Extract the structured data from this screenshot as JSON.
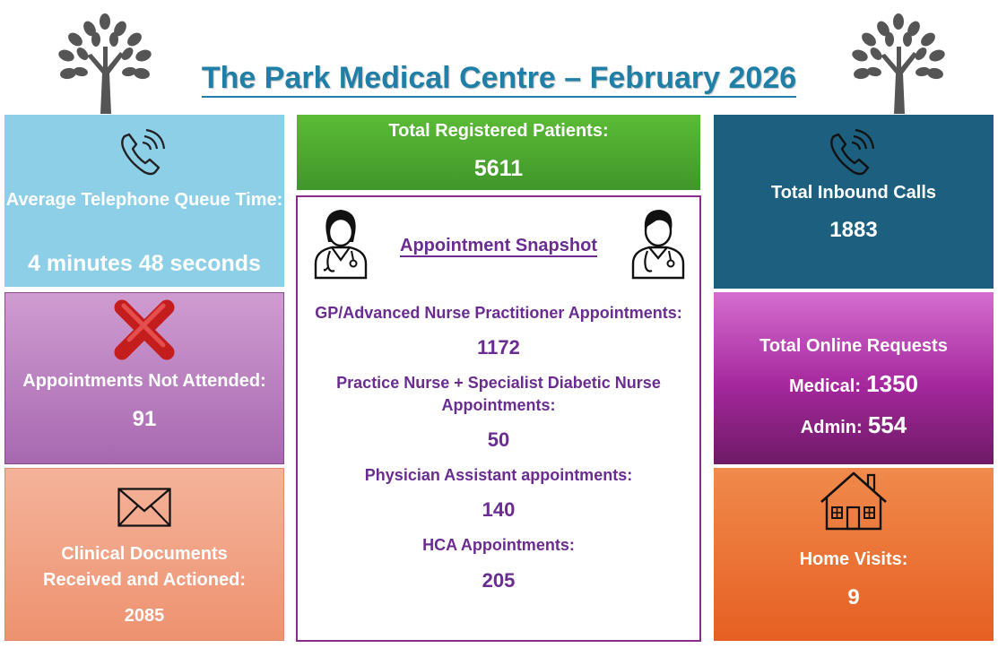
{
  "header": {
    "title": "The Park Medical Centre – February 2026",
    "left_icon": "tree-icon",
    "right_icon": "tree-icon"
  },
  "phone_queue": {
    "icon": "telephone-icon",
    "label": "Average Telephone Queue Time:",
    "value": "4 minutes 48 seconds",
    "color": "#8ecfe8"
  },
  "registered": {
    "label": "Total Registered Patients:",
    "value": "5611",
    "color": "#4faa2e"
  },
  "inbound": {
    "icon": "telephone-icon",
    "label": "Total Inbound Calls",
    "value": "1883",
    "color": "#1c5f7e"
  },
  "dna": {
    "icon": "red-cross-icon",
    "label": "Appointments Not Attended:",
    "value": "91",
    "color": "#b97fc0"
  },
  "online": {
    "label": "Total Online Requests",
    "medical_label": "Medical:",
    "medical_value": "1350",
    "admin_label": "Admin:",
    "admin_value": "554",
    "color": "#a52a9e"
  },
  "documents": {
    "icon": "envelope-icon",
    "label_line1": "Clinical Documents",
    "label_line2": "Received and Actioned:",
    "value": "2085",
    "color": "#f2a283"
  },
  "home_visits": {
    "icon": "house-icon",
    "label": "Home Visits:",
    "value": "9",
    "color": "#ea6b28"
  },
  "appointments": {
    "title": "Appointment Snapshot",
    "left_icon": "female-doctor-icon",
    "right_icon": "male-doctor-icon",
    "items": [
      {
        "label": "GP/Advanced Nurse Practitioner Appointments:",
        "value": "1172"
      },
      {
        "label_line1": "Practice Nurse + Specialist Diabetic Nurse",
        "label_line2": "Appointments:",
        "value": "50"
      },
      {
        "label": "Physician Assistant appointments:",
        "value": "140"
      },
      {
        "label": "HCA Appointments:",
        "value": "205"
      }
    ]
  }
}
